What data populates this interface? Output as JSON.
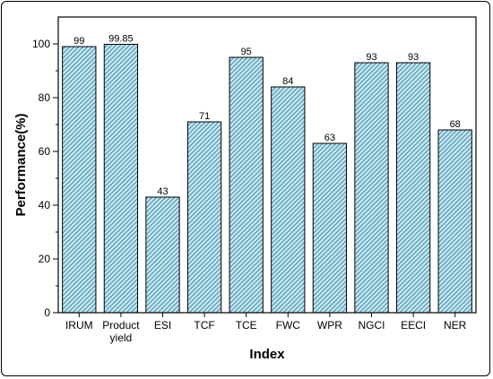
{
  "chart_data": {
    "type": "bar",
    "categories": [
      "IRUM",
      "Product yield",
      "ESI",
      "TCF",
      "TCE",
      "FWC",
      "WPR",
      "NGCI",
      "EECI",
      "NER"
    ],
    "category_lines": [
      [
        "IRUM"
      ],
      [
        "Product",
        "yield"
      ],
      [
        "ESI"
      ],
      [
        "TCF"
      ],
      [
        "TCE"
      ],
      [
        "FWC"
      ],
      [
        "WPR"
      ],
      [
        "NGCI"
      ],
      [
        "EECI"
      ],
      [
        "NER"
      ]
    ],
    "values": [
      99,
      99.85,
      43,
      71,
      95,
      84,
      63,
      93,
      93,
      68
    ],
    "data_labels": [
      "99",
      "99.85",
      "43",
      "71",
      "95",
      "84",
      "63",
      "93",
      "93",
      "68"
    ],
    "xlabel": "Index",
    "ylabel": "Performance(%)",
    "ylim": [
      0,
      110
    ],
    "yticks": [
      0,
      20,
      40,
      60,
      80,
      100
    ],
    "grid": false,
    "legend": "none",
    "bar_fill": "#bfe6f2",
    "hatch_color": "#3f7f96"
  }
}
